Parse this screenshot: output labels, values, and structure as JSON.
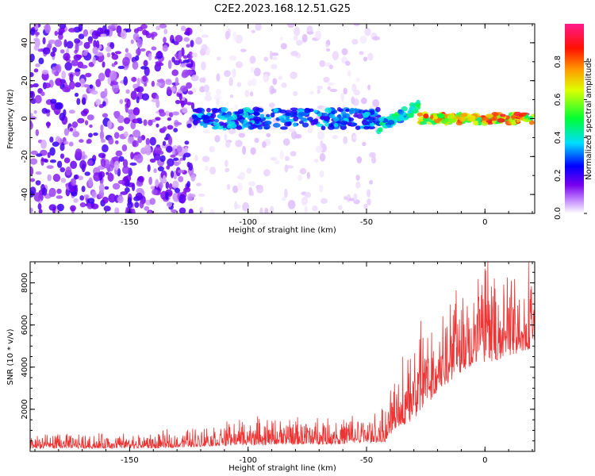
{
  "title": "C2E2.2023.168.12.51.G25",
  "chart_data": [
    {
      "type": "heatmap",
      "title": "C2E2.2023.168.12.51.G25",
      "xlabel": "Height of straight line (km)",
      "ylabel": "Frequency (Hz)",
      "xlim": [
        -192,
        21
      ],
      "ylim": [
        -50,
        50
      ],
      "xticks": [
        "-150",
        "-100",
        "-50",
        "0"
      ],
      "yticks": [
        "-40",
        "-20",
        "0",
        "20",
        "40"
      ],
      "colorbar": {
        "label": "Normalized spectral amplitude",
        "range": [
          0,
          1
        ],
        "ticks": [
          "0.0",
          "0.2",
          "0.4",
          "0.6",
          "0.8"
        ],
        "colormap": "rainbow (white-purple-blue-cyan-green-yellow-red-pink)"
      },
      "features": [
        {
          "x_range": [
            -192,
            -123
          ],
          "y_range": [
            -50,
            50
          ],
          "amplitude": 0.15,
          "pattern": "dense purple noise"
        },
        {
          "x_range": [
            -123,
            -45
          ],
          "y_range": [
            -50,
            50
          ],
          "amplitude": 0.03,
          "pattern": "sparse faint purple noise"
        },
        {
          "x_range": [
            -123,
            -45
          ],
          "y_center": 0,
          "y_halfwidth": 5,
          "amplitude": 0.35,
          "pattern": "blue/cyan band"
        },
        {
          "x_range": [
            -45,
            -28
          ],
          "y_center_start": -4,
          "y_center_end": 6,
          "amplitude": 0.45,
          "pattern": "rising cyan/green streak"
        },
        {
          "x_range": [
            -28,
            21
          ],
          "y_center": 0,
          "y_halfwidth": 2.5,
          "amplitude": 0.8,
          "pattern": "narrow green/yellow/red line"
        }
      ]
    },
    {
      "type": "line",
      "xlabel": "Height of straight line (km)",
      "ylabel": "SNR (10 * v/v)",
      "xlim": [
        -192,
        21
      ],
      "ylim": [
        0,
        9000
      ],
      "xticks": [
        "-150",
        "-100",
        "-50",
        "0"
      ],
      "yticks": [
        "2000",
        "4000",
        "6000",
        "8000"
      ],
      "color": "#ee3333",
      "envelope": [
        {
          "x": -192,
          "base": 250,
          "spread": 450
        },
        {
          "x": -140,
          "base": 250,
          "spread": 450
        },
        {
          "x": -125,
          "base": 350,
          "spread": 600
        },
        {
          "x": -100,
          "base": 500,
          "spread": 800
        },
        {
          "x": -60,
          "base": 550,
          "spread": 850
        },
        {
          "x": -42,
          "base": 700,
          "spread": 1000
        },
        {
          "x": -38,
          "base": 1500,
          "spread": 1800
        },
        {
          "x": -30,
          "base": 2200,
          "spread": 2800
        },
        {
          "x": -20,
          "base": 3500,
          "spread": 2800
        },
        {
          "x": -15,
          "base": 4200,
          "spread": 3500
        },
        {
          "x": -5,
          "base": 4800,
          "spread": 2800
        },
        {
          "x": 5,
          "base": 5000,
          "spread": 2800
        },
        {
          "x": 21,
          "base": 5500,
          "spread": 2400
        }
      ]
    }
  ]
}
